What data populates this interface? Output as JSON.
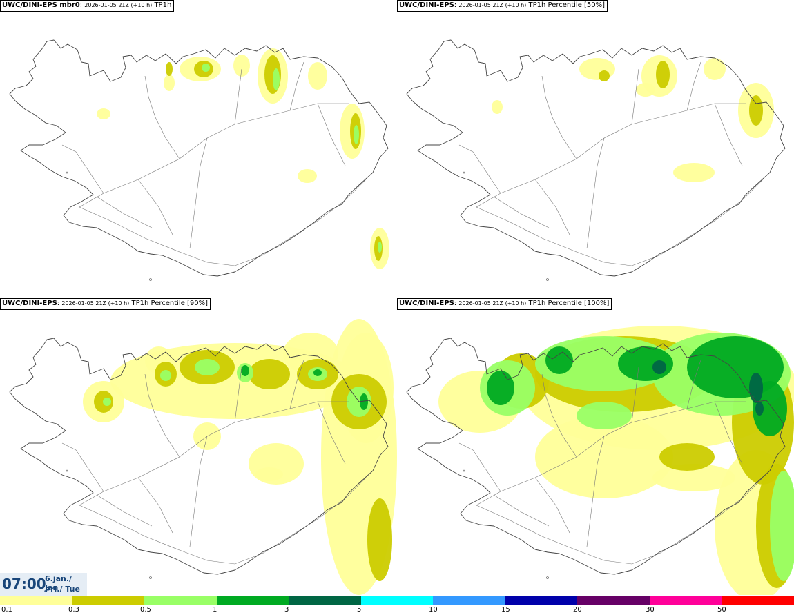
{
  "panels": [
    {
      "source": "UWC/DINI-EPS mbr0",
      "timestamp": "2026-01-05 21Z (+10 h)",
      "variable": "TP1h",
      "level": 0
    },
    {
      "source": "UWC/DINI-EPS",
      "timestamp": "2026-01-05 21Z (+10 h)",
      "variable": "TP1h Percentile [50%]",
      "level": 1
    },
    {
      "source": "UWC/DINI-EPS",
      "timestamp": "2026-01-05 21Z (+10 h)",
      "variable": "TP1h Percentile [90%]",
      "level": 2
    },
    {
      "source": "UWC/DINI-EPS",
      "timestamp": "2026-01-05 21Z (+10 h)",
      "variable": "TP1h Percentile [100%]",
      "level": 3
    }
  ],
  "time": {
    "clock": "07:00",
    "date": "6.jan./ Jan",
    "weekday": "Þri./ Tue"
  },
  "legend": {
    "colors": [
      "#ffff99",
      "#cccc00",
      "#99ff66",
      "#00aa22",
      "#006644",
      "#00ffff",
      "#3399ff",
      "#0000aa",
      "#660066",
      "#ff0099",
      "#ff0000"
    ],
    "labels": [
      "0.1",
      "0.3",
      "0.5",
      "1",
      "3",
      "5",
      "10",
      "15",
      "20",
      "30",
      "50"
    ]
  },
  "palette": {
    "coast": "#444444",
    "roads": "#777777",
    "light": "#ffff99",
    "medium": "#cccc00",
    "bright": "#99ff66",
    "green": "#00aa22",
    "dark": "#006644"
  }
}
